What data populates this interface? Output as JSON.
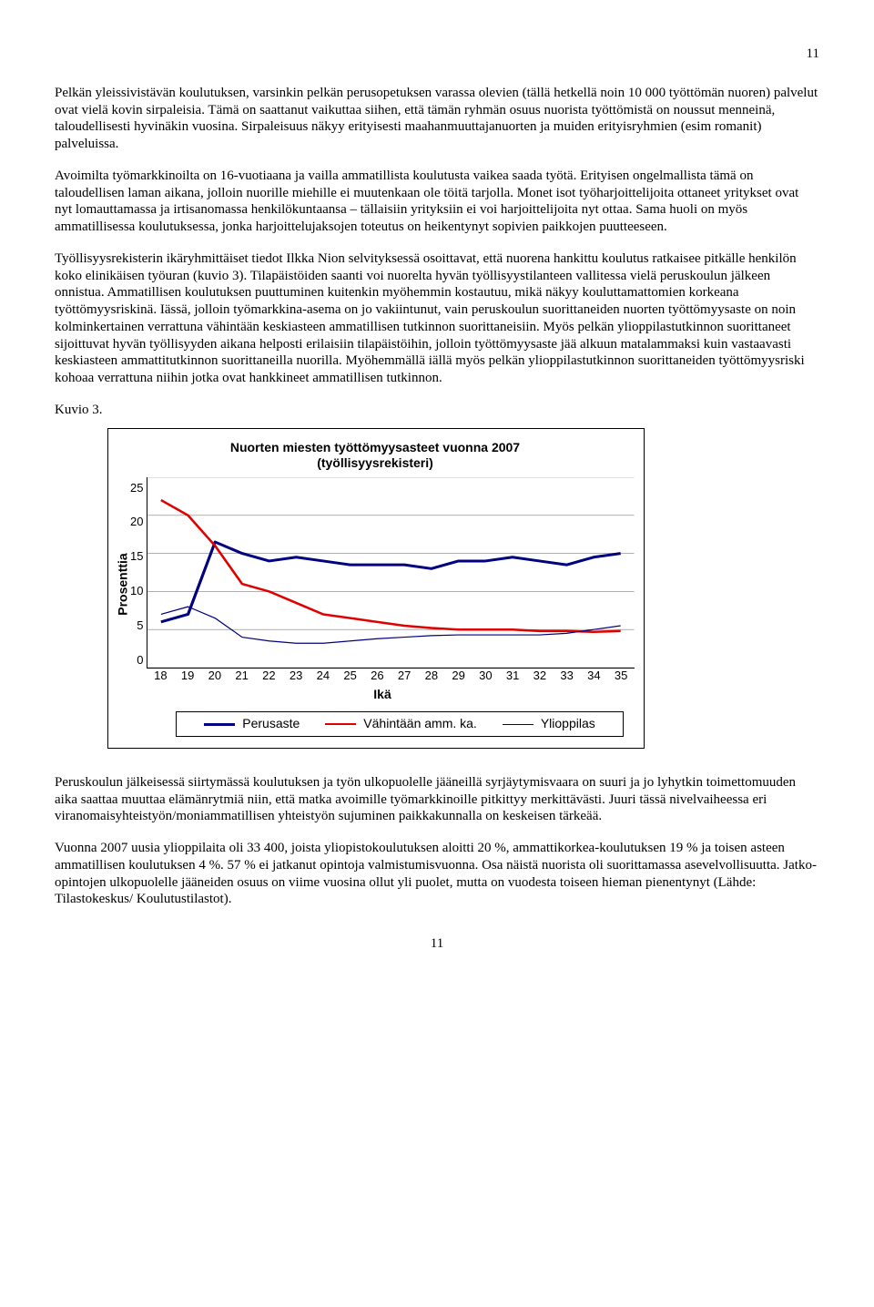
{
  "page_number_top": "11",
  "page_number_bottom": "11",
  "paragraphs": {
    "p1": "Pelkän yleissivistävän koulutuksen, varsinkin pelkän perusopetuksen varassa olevien (tällä hetkellä noin 10 000 työttömän nuoren) palvelut ovat vielä kovin sirpaleisia. Tämä on saattanut vaikuttaa siihen, että tämän ryhmän osuus nuorista työttömistä on noussut menneinä, taloudellisesti hyvinäkin vuosina. Sirpaleisuus näkyy erityisesti maahanmuuttajanuorten ja muiden erityisryhmien (esim romanit) palveluissa.",
    "p2": "Avoimilta työmarkkinoilta on 16-vuotiaana ja vailla ammatillista koulutusta vaikea saada työtä. Erityisen ongelmallista tämä on taloudellisen laman aikana, jolloin nuorille miehille ei muutenkaan ole töitä tarjolla. Monet isot työharjoittelijoita ottaneet yritykset ovat nyt lomauttamassa ja irtisanomassa henkilökuntaansa – tällaisiin yrityksiin ei voi harjoittelijoita nyt ottaa. Sama huoli on myös ammatillisessa koulutuksessa, jonka harjoittelujaksojen toteutus on heikentynyt sopivien paikkojen puutteeseen.",
    "p3": "Työllisyysrekisterin ikäryhmittäiset tiedot Ilkka Nion selvityksessä osoittavat, että nuorena hankittu koulutus ratkaisee pitkälle henkilön koko elinikäisen työuran (kuvio 3). Tilapäistöiden saanti voi nuorelta hyvän työllisyystilanteen vallitessa vielä peruskoulun jälkeen onnistua. Ammatillisen koulutuksen puuttuminen kuitenkin myöhemmin kostautuu, mikä näkyy kouluttamattomien korkeana työttömyysriskinä. Iässä, jolloin työmarkkina-asema on jo vakiintunut, vain peruskoulun suorittaneiden nuorten työttömyysaste on noin kolminkertainen verrattuna vähintään keskiasteen ammatillisen tutkinnon suorittaneisiin. Myös pelkän ylioppilastutkinnon suorittaneet sijoittuvat hyvän työllisyyden aikana helposti erilaisiin tilapäistöihin, jolloin työttömyysaste jää alkuun matalammaksi kuin vastaavasti keskiasteen ammattitutkinnon suorittaneilla nuorilla. Myöhemmällä iällä myös pelkän ylioppilastutkinnon suorittaneiden työttömyysriski kohoaa verrattuna niihin jotka ovat hankkineet ammatillisen tutkinnon.",
    "kuvio": "Kuvio 3.",
    "p4": "Peruskoulun jälkeisessä siirtymässä koulutuksen ja työn ulkopuolelle jääneillä syrjäytymisvaara on  suuri ja jo lyhytkin toimettomuuden aika saattaa muuttaa elämänrytmiä niin, että matka avoimille työmarkkinoille pitkittyy merkittävästi. Juuri tässä nivelvaiheessa eri viranomaisyhteistyön/moniammatillisen yhteistyön sujuminen paikkakunnalla  on keskeisen tärkeää.",
    "p5": "Vuonna 2007 uusia ylioppilaita oli 33 400, joista yliopistokoulutuksen aloitti 20 %, ammattikorkea-koulutuksen 19 % ja toisen asteen ammatillisen koulutuksen 4 %. 57 % ei jatkanut opintoja valmistumisvuonna. Osa näistä nuorista oli suorittamassa asevelvollisuutta. Jatko-opintojen ulkopuolelle jääneiden osuus on viime vuosina ollut yli puolet, mutta on vuodesta toiseen hieman pienentynyt (Lähde: Tilastokeskus/ Koulutustilastot)."
  },
  "chart": {
    "title_line1": "Nuorten miesten työttömyysasteet vuonna 2007",
    "title_line2": "(työllisyysrekisteri)",
    "ylabel": "Prosenttia",
    "xlabel": "Ikä",
    "x_categories": [
      "18",
      "19",
      "20",
      "21",
      "22",
      "23",
      "24",
      "25",
      "26",
      "27",
      "28",
      "29",
      "30",
      "31",
      "32",
      "33",
      "34",
      "35"
    ],
    "y_ticks": [
      "25",
      "20",
      "15",
      "10",
      "5",
      "0"
    ],
    "ylim": [
      0,
      25
    ],
    "grid_color": "#808080",
    "background": "#ffffff",
    "series": {
      "perusaste": {
        "label": "Perusaste",
        "color": "#000080",
        "width": 3,
        "values": [
          6,
          7,
          16.5,
          15,
          14,
          14.5,
          14,
          13.5,
          13.5,
          13.5,
          13,
          14,
          14,
          14.5,
          14,
          13.5,
          14.5,
          15
        ]
      },
      "vahintaan": {
        "label": "Vähintään amm. ka.",
        "color": "#e00000",
        "width": 2.5,
        "values": [
          22,
          20,
          16,
          11,
          10,
          8.5,
          7,
          6.5,
          6,
          5.5,
          5.2,
          5,
          5,
          5,
          4.8,
          4.8,
          4.7,
          4.8
        ]
      },
      "ylioppilas": {
        "label": "Ylioppilas",
        "color": "#000080",
        "width": 1.2,
        "values": [
          7,
          8,
          6.5,
          4,
          3.5,
          3.2,
          3.2,
          3.5,
          3.8,
          4,
          4.2,
          4.3,
          4.3,
          4.3,
          4.3,
          4.5,
          5,
          5.5
        ]
      }
    }
  }
}
